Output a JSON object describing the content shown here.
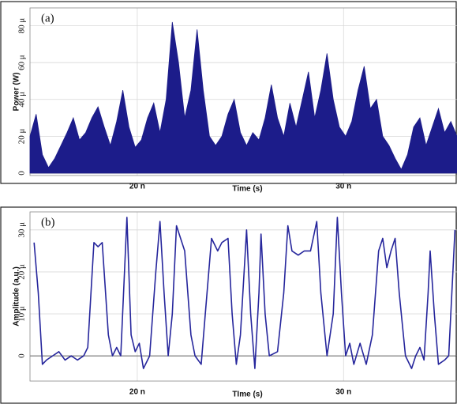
{
  "chart_data": [
    {
      "type": "area",
      "annotation": "(a)",
      "xlabel": "Time (s)",
      "ylabel": "Power (W)",
      "xlim": [
        1.48e-08,
        3.55e-08
      ],
      "ylim": [
        -1.3e-06,
        8.97e-05
      ],
      "xticks": [
        {
          "value": 2e-08,
          "label": "20 n"
        },
        {
          "value": 3e-08,
          "label": "30 n"
        }
      ],
      "yticks": [
        {
          "value": 0,
          "label": "0"
        },
        {
          "value": 2e-05,
          "label": "20 μ"
        },
        {
          "value": 4e-05,
          "label": "40 μ"
        },
        {
          "value": 6e-05,
          "label": "60 μ"
        },
        {
          "value": 8e-05,
          "label": "80 μ"
        }
      ],
      "grid": true,
      "x": [
        1.48e-08,
        1.51e-08,
        1.54e-08,
        1.57e-08,
        1.6e-08,
        1.63e-08,
        1.66e-08,
        1.69e-08,
        1.72e-08,
        1.75e-08,
        1.78e-08,
        1.81e-08,
        1.84e-08,
        1.87e-08,
        1.9e-08,
        1.93e-08,
        1.96e-08,
        1.99e-08,
        2.02e-08,
        2.05e-08,
        2.08e-08,
        2.11e-08,
        2.14e-08,
        2.17e-08,
        2.2e-08,
        2.23e-08,
        2.26e-08,
        2.29e-08,
        2.32e-08,
        2.35e-08,
        2.38e-08,
        2.41e-08,
        2.44e-08,
        2.47e-08,
        2.5e-08,
        2.53e-08,
        2.56e-08,
        2.59e-08,
        2.62e-08,
        2.65e-08,
        2.68e-08,
        2.71e-08,
        2.74e-08,
        2.77e-08,
        2.8e-08,
        2.83e-08,
        2.86e-08,
        2.89e-08,
        2.92e-08,
        2.95e-08,
        2.98e-08,
        3.01e-08,
        3.04e-08,
        3.07e-08,
        3.1e-08,
        3.13e-08,
        3.16e-08,
        3.19e-08,
        3.22e-08,
        3.25e-08,
        3.28e-08,
        3.31e-08,
        3.34e-08,
        3.37e-08,
        3.4e-08,
        3.43e-08,
        3.46e-08,
        3.49e-08,
        3.52e-08,
        3.55e-08
      ],
      "series": [
        {
          "color": "#1c1c8a",
          "values": [
            2e-05,
            3.2e-05,
            1e-05,
            3e-06,
            8e-06,
            1.5e-05,
            2.2e-05,
            3e-05,
            1.8e-05,
            2.2e-05,
            3e-05,
            3.6e-05,
            2.5e-05,
            1.5e-05,
            2.8e-05,
            4.5e-05,
            2.5e-05,
            1.4e-05,
            1.8e-05,
            3e-05,
            3.8e-05,
            2.2e-05,
            4e-05,
            8.2e-05,
            6e-05,
            3e-05,
            4.5e-05,
            7.8e-05,
            4.5e-05,
            2e-05,
            1.5e-05,
            2e-05,
            3.2e-05,
            4e-05,
            2.2e-05,
            1.5e-05,
            2.2e-05,
            1.8e-05,
            3e-05,
            4.8e-05,
            3e-05,
            2e-05,
            3.8e-05,
            2.5e-05,
            4e-05,
            5.5e-05,
            3e-05,
            4.5e-05,
            6.5e-05,
            4e-05,
            2.5e-05,
            2e-05,
            2.8e-05,
            4.5e-05,
            5.8e-05,
            3.5e-05,
            4e-05,
            2e-05,
            1.5e-05,
            8e-06,
            2e-06,
            1e-05,
            2.5e-05,
            3e-05,
            1.5e-05,
            2.5e-05,
            3.5e-05,
            2.2e-05,
            2.8e-05,
            2e-05
          ]
        }
      ]
    },
    {
      "type": "line",
      "annotation": "(b)",
      "xlabel": "TIme (s)",
      "ylabel": "Amplitude (a.u.)",
      "xlim": [
        1.48e-08,
        3.55e-08
      ],
      "ylim": [
        -6e-06,
        3.43e-05
      ],
      "xticks": [
        {
          "value": 2e-08,
          "label": "20 n"
        },
        {
          "value": 3e-08,
          "label": "30 n"
        }
      ],
      "yticks": [
        {
          "value": 0,
          "label": "0"
        },
        {
          "value": 1e-05,
          "label": "10 μ"
        },
        {
          "value": 2e-05,
          "label": "20 μ"
        },
        {
          "value": 3e-05,
          "label": "30 μ"
        }
      ],
      "grid": true,
      "x": [
        1.5e-08,
        1.52e-08,
        1.54e-08,
        1.56e-08,
        1.59e-08,
        1.62e-08,
        1.65e-08,
        1.68e-08,
        1.71e-08,
        1.74e-08,
        1.76e-08,
        1.79e-08,
        1.81e-08,
        1.83e-08,
        1.86e-08,
        1.88e-08,
        1.9e-08,
        1.92e-08,
        1.95e-08,
        1.97e-08,
        1.99e-08,
        2.01e-08,
        2.03e-08,
        2.06e-08,
        2.09e-08,
        2.11e-08,
        2.13e-08,
        2.15e-08,
        2.17e-08,
        2.19e-08,
        2.21e-08,
        2.23e-08,
        2.26e-08,
        2.28e-08,
        2.31e-08,
        2.33e-08,
        2.36e-08,
        2.39e-08,
        2.41e-08,
        2.44e-08,
        2.46e-08,
        2.48e-08,
        2.5e-08,
        2.53e-08,
        2.55e-08,
        2.57e-08,
        2.59e-08,
        2.6e-08,
        2.62e-08,
        2.64e-08,
        2.68e-08,
        2.71e-08,
        2.73e-08,
        2.75e-08,
        2.78e-08,
        2.81e-08,
        2.84e-08,
        2.87e-08,
        2.89e-08,
        2.92e-08,
        2.95e-08,
        2.97e-08,
        2.99e-08,
        3.01e-08,
        3.03e-08,
        3.05e-08,
        3.08e-08,
        3.11e-08,
        3.14e-08,
        3.17e-08,
        3.19e-08,
        3.21e-08,
        3.23e-08,
        3.25e-08,
        3.27e-08,
        3.3e-08,
        3.33e-08,
        3.35e-08,
        3.37e-08,
        3.39e-08,
        3.41e-08,
        3.42e-08,
        3.44e-08,
        3.46e-08,
        3.49e-08,
        3.51e-08,
        3.53e-08,
        3.54e-08
      ],
      "series": [
        {
          "color": "#26269c",
          "values": [
            2.7e-05,
            1.5e-05,
            -2e-06,
            -1e-06,
            0,
            1e-06,
            -1e-06,
            0,
            -1e-06,
            0,
            2e-06,
            2.7e-05,
            2.6e-05,
            2.7e-05,
            5e-06,
            0,
            2e-06,
            0,
            3.3e-05,
            5e-06,
            1e-06,
            3e-06,
            -3e-06,
            0,
            2e-05,
            3.2e-05,
            1.5e-05,
            0,
            1e-05,
            3.1e-05,
            2.8e-05,
            2.5e-05,
            5e-06,
            0,
            -2e-06,
            1e-05,
            2.8e-05,
            2.5e-05,
            2.7e-05,
            2.8e-05,
            1e-05,
            -2e-06,
            5e-06,
            3e-05,
            1e-05,
            -3e-06,
            1.5e-05,
            2.9e-05,
            1e-05,
            0,
            1e-06,
            1.5e-05,
            3.1e-05,
            2.5e-05,
            2.4e-05,
            2.5e-05,
            2.5e-05,
            3.2e-05,
            1.5e-05,
            0,
            1e-05,
            3.3e-05,
            1.5e-05,
            0,
            3e-06,
            -2e-06,
            3e-06,
            -2e-06,
            5e-06,
            2.5e-05,
            2.8e-05,
            2.1e-05,
            2.5e-05,
            2.8e-05,
            1.5e-05,
            0,
            -3e-06,
            0,
            2e-06,
            -1e-06,
            1.5e-05,
            2.5e-05,
            1e-05,
            -2e-06,
            -1e-06,
            0,
            2e-05,
            3e-05
          ]
        }
      ]
    }
  ]
}
